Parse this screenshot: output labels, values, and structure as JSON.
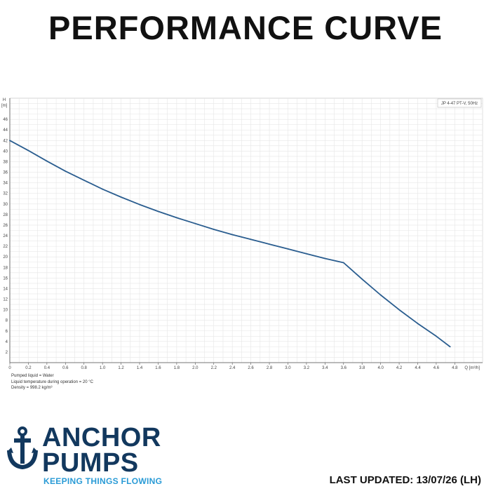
{
  "page": {
    "title": "PERFORMANCE CURVE",
    "last_updated": "LAST UPDATED: 13/07/26 (LH)"
  },
  "brand": {
    "name_line1": "ANCHOR",
    "name_line2": "PUMPS",
    "tagline": "KEEPING THINGS FLOWING",
    "primary_color": "#12385e",
    "accent_color": "#2a9bd6",
    "logo_icon": "anchor-icon"
  },
  "notes": [
    "Pumped liquid = Water",
    "Liquid temperature during operation = 20 °C",
    "Density = 998.2 kg/m³"
  ],
  "chart_data": {
    "type": "line",
    "title": "",
    "legend_box": "JP 4-47 PT-V, 50Hz",
    "legend_placement": "top-right",
    "xlabel": "Q [m³/h]",
    "ylabel_top": "H",
    "ylabel_unit": "[m]",
    "xlim": [
      0,
      5.1
    ],
    "ylim": [
      0,
      50
    ],
    "x_ticks": [
      "0",
      "0.2",
      "0.4",
      "0.6",
      "0.8",
      "1.0",
      "1.2",
      "1.4",
      "1.6",
      "1.8",
      "2.0",
      "2.2",
      "2.4",
      "2.6",
      "2.8",
      "3.0",
      "3.2",
      "3.4",
      "3.6",
      "3.8",
      "4.0",
      "4.2",
      "4.4",
      "4.6",
      "4.8"
    ],
    "y_ticks": [
      "2",
      "4",
      "6",
      "8",
      "10",
      "12",
      "14",
      "16",
      "18",
      "20",
      "22",
      "24",
      "26",
      "28",
      "30",
      "32",
      "34",
      "36",
      "38",
      "40",
      "42",
      "44",
      "46"
    ],
    "grid": true,
    "line_color": "#2a5d8f",
    "series": [
      {
        "x": [
          0,
          0.2,
          0.4,
          0.6,
          0.8,
          1.0,
          1.2,
          1.4,
          1.6,
          1.8,
          2.0,
          2.2,
          2.4,
          2.6,
          2.8,
          3.0,
          3.2,
          3.4,
          3.6,
          3.8,
          4.0,
          4.2,
          4.4,
          4.6,
          4.75
        ],
        "values": [
          42.0,
          40.1,
          38.1,
          36.2,
          34.5,
          32.8,
          31.3,
          29.9,
          28.6,
          27.4,
          26.3,
          25.2,
          24.2,
          23.3,
          22.4,
          21.5,
          20.6,
          19.7,
          18.9,
          15.8,
          12.8,
          10.0,
          7.4,
          5.0,
          3.0
        ]
      }
    ]
  }
}
